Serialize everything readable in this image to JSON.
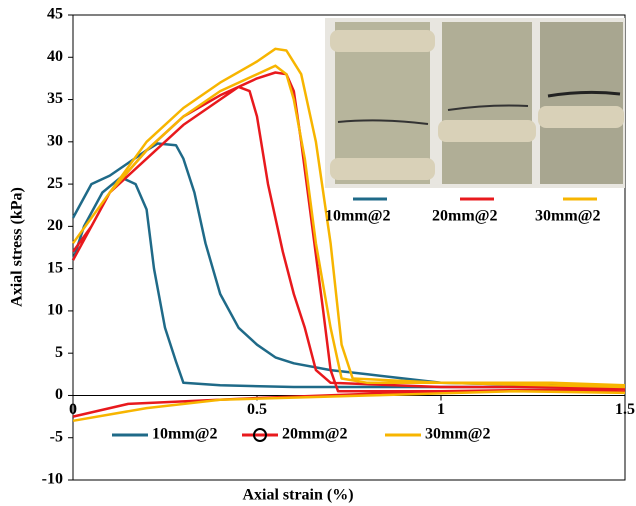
{
  "chart_data": {
    "type": "line",
    "xlabel": "Axial strain (%)",
    "ylabel": "Axial stress (kPa)",
    "xlim": [
      0,
      1.5
    ],
    "xticks": [
      0,
      0.5,
      1,
      1.5
    ],
    "ylim": [
      -10,
      45
    ],
    "yticks": [
      -10,
      -5,
      0,
      5,
      10,
      15,
      20,
      25,
      30,
      35,
      40,
      45
    ],
    "grid": false,
    "legend_position": "bottom",
    "inset_labels": [
      "10mm@2",
      "20mm@2",
      "30mm@2"
    ],
    "series": [
      {
        "name": "10mm@2",
        "color": "#1f6a88",
        "x": [
          0,
          0.05,
          0.1,
          0.15,
          0.2,
          0.23,
          0.28,
          0.3,
          0.33,
          0.36,
          0.4,
          0.45,
          0.5,
          0.55,
          0.6,
          0.7,
          0.8,
          1,
          1.3,
          1.33,
          1.35,
          null,
          0,
          0.03,
          0.08,
          0.13,
          0.17,
          0.2,
          0.22,
          0.25,
          0.28,
          0.3,
          0.4,
          0.6,
          1,
          1.5
        ],
        "values": [
          21,
          25,
          26,
          27.5,
          29,
          29.8,
          29.6,
          28,
          24,
          18,
          12,
          8,
          6,
          4.5,
          3.8,
          3,
          2.5,
          1.5,
          1.2,
          1.4,
          1,
          null,
          16,
          20,
          24,
          25.8,
          25,
          22,
          15,
          8,
          4,
          1.5,
          1.2,
          1,
          1,
          1
        ]
      },
      {
        "name": "20mm@2",
        "color": "#e8191d",
        "x": [
          0,
          0.05,
          0.1,
          0.2,
          0.3,
          0.4,
          0.45,
          0.48,
          0.5,
          0.53,
          0.57,
          0.6,
          0.63,
          0.66,
          0.7,
          1,
          1.5,
          null,
          0,
          0.1,
          0.2,
          0.3,
          0.4,
          0.5,
          0.55,
          0.58,
          0.6,
          0.62,
          0.65,
          0.68,
          0.7,
          0.72,
          1,
          1.5,
          null,
          0,
          0.15,
          0.5,
          1,
          1.5
        ],
        "values": [
          17,
          20,
          24,
          28,
          32,
          35,
          36.5,
          36,
          33,
          25,
          17,
          12,
          8,
          3,
          1.5,
          1,
          1,
          null,
          16,
          24,
          29,
          33,
          35.5,
          37.5,
          38.2,
          38,
          36,
          30,
          20,
          10,
          3,
          0.5,
          0.5,
          0.5,
          null,
          -2.5,
          -1,
          -0.3,
          0.5,
          0.8
        ]
      },
      {
        "name": "30mm@2",
        "color": "#f7b500",
        "x": [
          0,
          0.1,
          0.2,
          0.3,
          0.4,
          0.5,
          0.55,
          0.58,
          0.6,
          0.63,
          0.66,
          0.7,
          0.73,
          0.8,
          1.3,
          1.5,
          null,
          0,
          0.1,
          0.2,
          0.3,
          0.4,
          0.5,
          0.55,
          0.58,
          0.62,
          0.66,
          0.7,
          0.73,
          0.76,
          1,
          1.5,
          null,
          0,
          0.2,
          0.4,
          0.8,
          1.2,
          1.5
        ],
        "values": [
          18,
          24,
          29,
          33,
          36,
          38,
          39,
          38,
          35,
          28,
          18,
          8,
          2,
          1.5,
          1.5,
          1.2,
          null,
          18,
          24,
          30,
          34,
          37,
          39.5,
          41,
          40.8,
          38,
          30,
          18,
          6,
          2,
          1.5,
          1,
          null,
          -3,
          -1.5,
          -0.5,
          0,
          0.5,
          0.3
        ]
      }
    ]
  }
}
